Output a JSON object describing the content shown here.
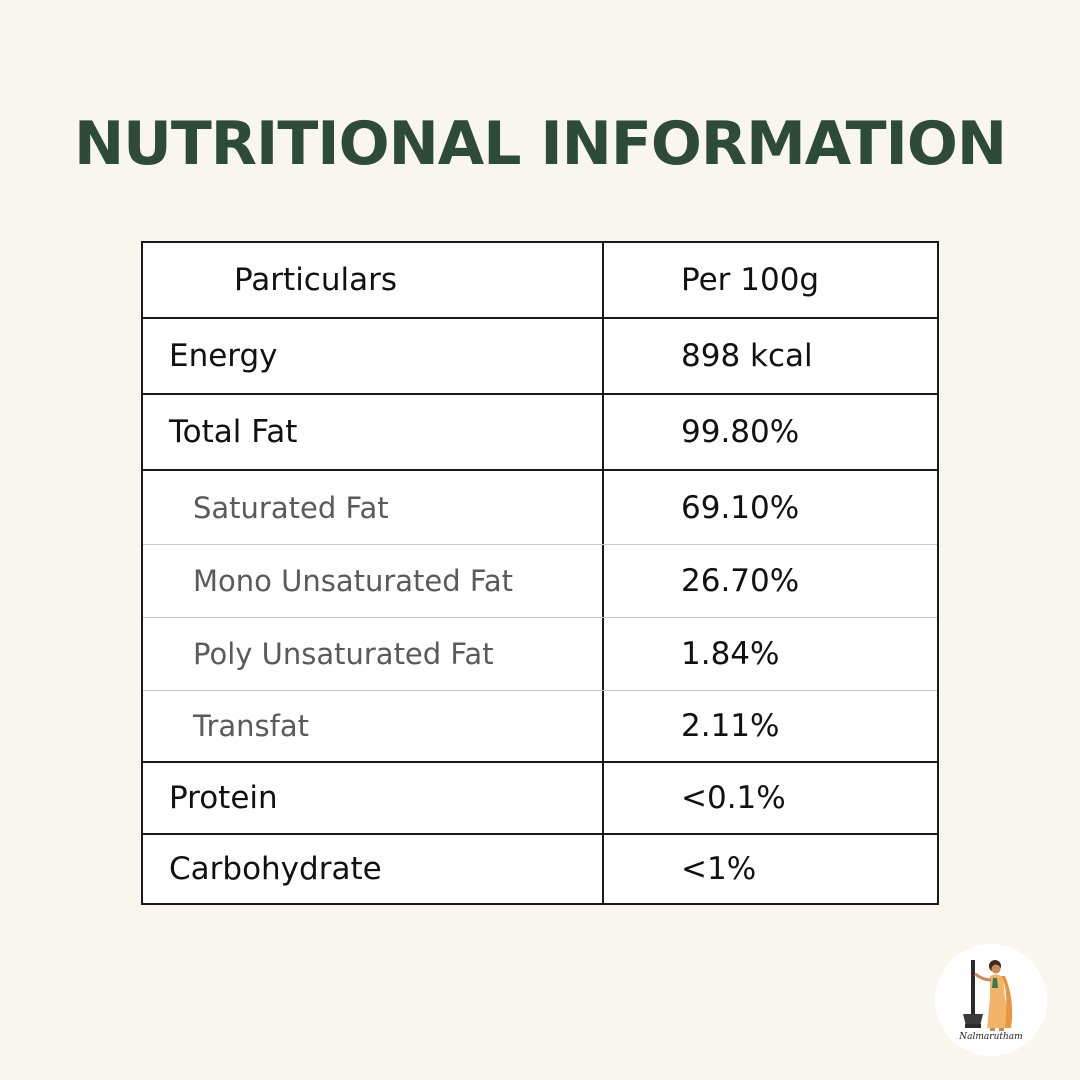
{
  "title": "NUTRITIONAL INFORMATION",
  "table": {
    "header": {
      "particulars": "Particulars",
      "per_100g": "Per 100g"
    },
    "rows": [
      {
        "name": "Energy",
        "value": "898 kcal",
        "sub": false
      },
      {
        "name": "Total Fat",
        "value": "99.80%",
        "sub": false
      },
      {
        "name": "Saturated Fat",
        "value": "69.10%",
        "sub": true
      },
      {
        "name": "Mono Unsaturated Fat",
        "value": "26.70%",
        "sub": true
      },
      {
        "name": "Poly Unsaturated Fat",
        "value": "1.84%",
        "sub": true
      },
      {
        "name": "Transfat",
        "value": "2.11%",
        "sub": true
      },
      {
        "name": "Protein",
        "value": "<0.1%",
        "sub": false
      },
      {
        "name": "Carbohydrate",
        "value": "<1%",
        "sub": false
      }
    ]
  },
  "logo": {
    "text": "Nalmarutham",
    "icon": "woman-with-mortar-pestle-icon"
  },
  "colors": {
    "background": "#f9f5ef",
    "title": "#2e4a3a",
    "border": "#1a1a1a",
    "subtext": "#5a5a5a"
  }
}
